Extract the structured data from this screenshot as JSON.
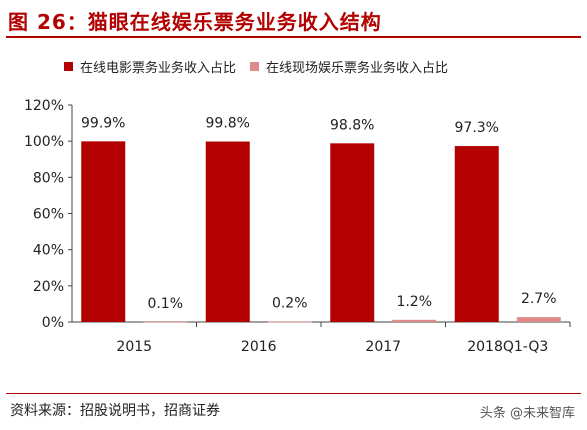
{
  "header": {
    "title": "图 26：猫眼在线娱乐票务业务收入结构"
  },
  "footer": {
    "source": "资料来源：招股说明书，招商证券",
    "watermark": "头条 @未来智库"
  },
  "colors": {
    "series1": "#b30000",
    "series2": "#e08a8a",
    "title": "#b30000"
  },
  "chart_data": {
    "type": "bar",
    "categories": [
      "2015",
      "2016",
      "2017",
      "2018Q1-Q3"
    ],
    "series": [
      {
        "name": "在线电影票务业务收入占比",
        "values": [
          99.9,
          99.8,
          98.8,
          97.3
        ],
        "labels": [
          "99.9%",
          "99.8%",
          "98.8%",
          "97.3%"
        ]
      },
      {
        "name": "在线现场娱乐票务业务收入占比",
        "values": [
          0.1,
          0.2,
          1.2,
          2.7
        ],
        "labels": [
          "0.1%",
          "0.2%",
          "1.2%",
          "2.7%"
        ]
      }
    ],
    "ylim": [
      0,
      120
    ],
    "yticks": [
      "0%",
      "20%",
      "40%",
      "60%",
      "80%",
      "100%",
      "120%"
    ],
    "title": "",
    "xlabel": "",
    "ylabel": "",
    "grid": false,
    "legend": "top"
  }
}
